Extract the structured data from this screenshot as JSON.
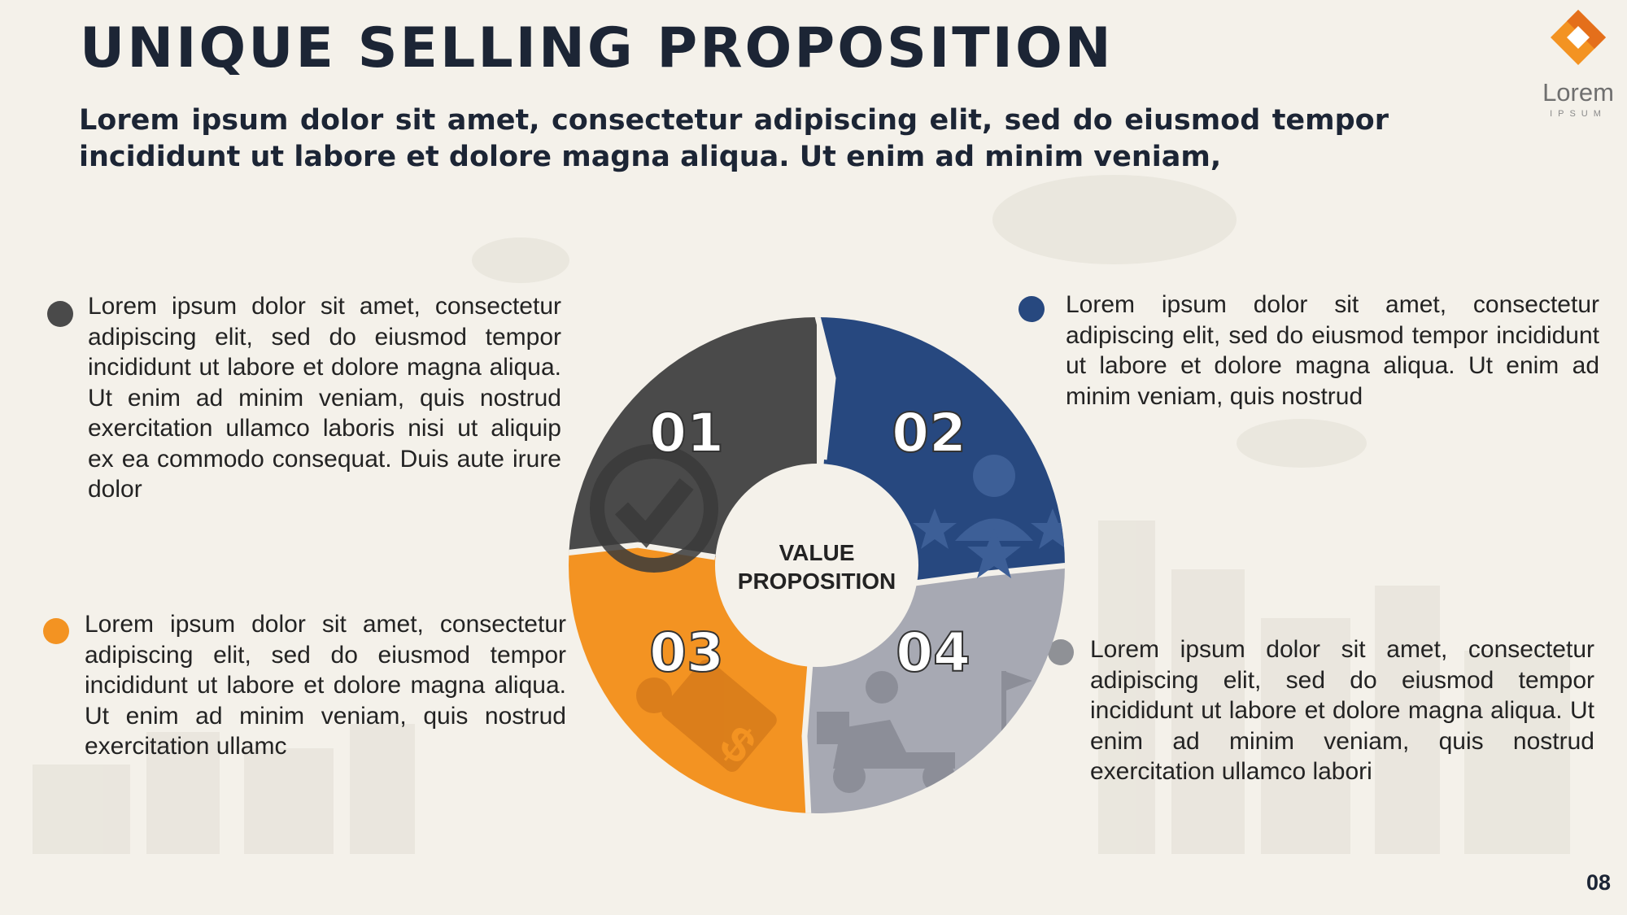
{
  "slide": {
    "title": "UNIQUE SELLING PROPOSITION",
    "subtitle": "Lorem ipsum dolor sit amet, consectetur adipiscing elit, sed do eiusmod tempor incididunt ut labore et dolore magna aliqua. Ut enim ad minim veniam,",
    "page_number": "08"
  },
  "logo": {
    "text": "Lorem",
    "subtext": "IPSUM"
  },
  "diagram": {
    "center_line1": "VALUE",
    "center_line2": "PROPOSITION",
    "segments": [
      {
        "number": "01",
        "color": "#4a4a4a",
        "icon": "gear-check-icon"
      },
      {
        "number": "02",
        "color": "#27487f",
        "icon": "person-stars-icon"
      },
      {
        "number": "03",
        "color": "#f39322",
        "icon": "hand-money-icon"
      },
      {
        "number": "04",
        "color": "#a7a9b3",
        "icon": "delivery-scooter-icon"
      }
    ]
  },
  "points": [
    {
      "number": "01",
      "color": "#4a4a4a",
      "text": "Lorem ipsum dolor sit amet, consectetur adipiscing elit, sed do eiusmod tempor incididunt ut labore et dolore magna aliqua. Ut enim ad minim veniam, quis nostrud exercitation ullamco laboris nisi ut aliquip ex ea commodo consequat. Duis aute irure dolor"
    },
    {
      "number": "02",
      "color": "#27487f",
      "text": "Lorem ipsum dolor sit amet, consectetur adipiscing elit, sed do eiusmod tempor incididunt ut labore et dolore magna aliqua. Ut enim ad minim veniam, quis nostrud"
    },
    {
      "number": "03",
      "color": "#f39322",
      "text": "Lorem ipsum dolor sit amet, consectetur adipiscing elit, sed do eiusmod tempor incididunt ut labore et dolore magna aliqua. Ut enim ad minim veniam, quis nostrud exercitation ullamc"
    },
    {
      "number": "04",
      "color": "#8f9196",
      "text": "Lorem ipsum dolor sit amet, consectetur adipiscing elit, sed do eiusmod tempor incididunt ut labore et dolore magna aliqua. Ut enim ad minim veniam, quis nostrud exercitation ullamco labori"
    }
  ]
}
